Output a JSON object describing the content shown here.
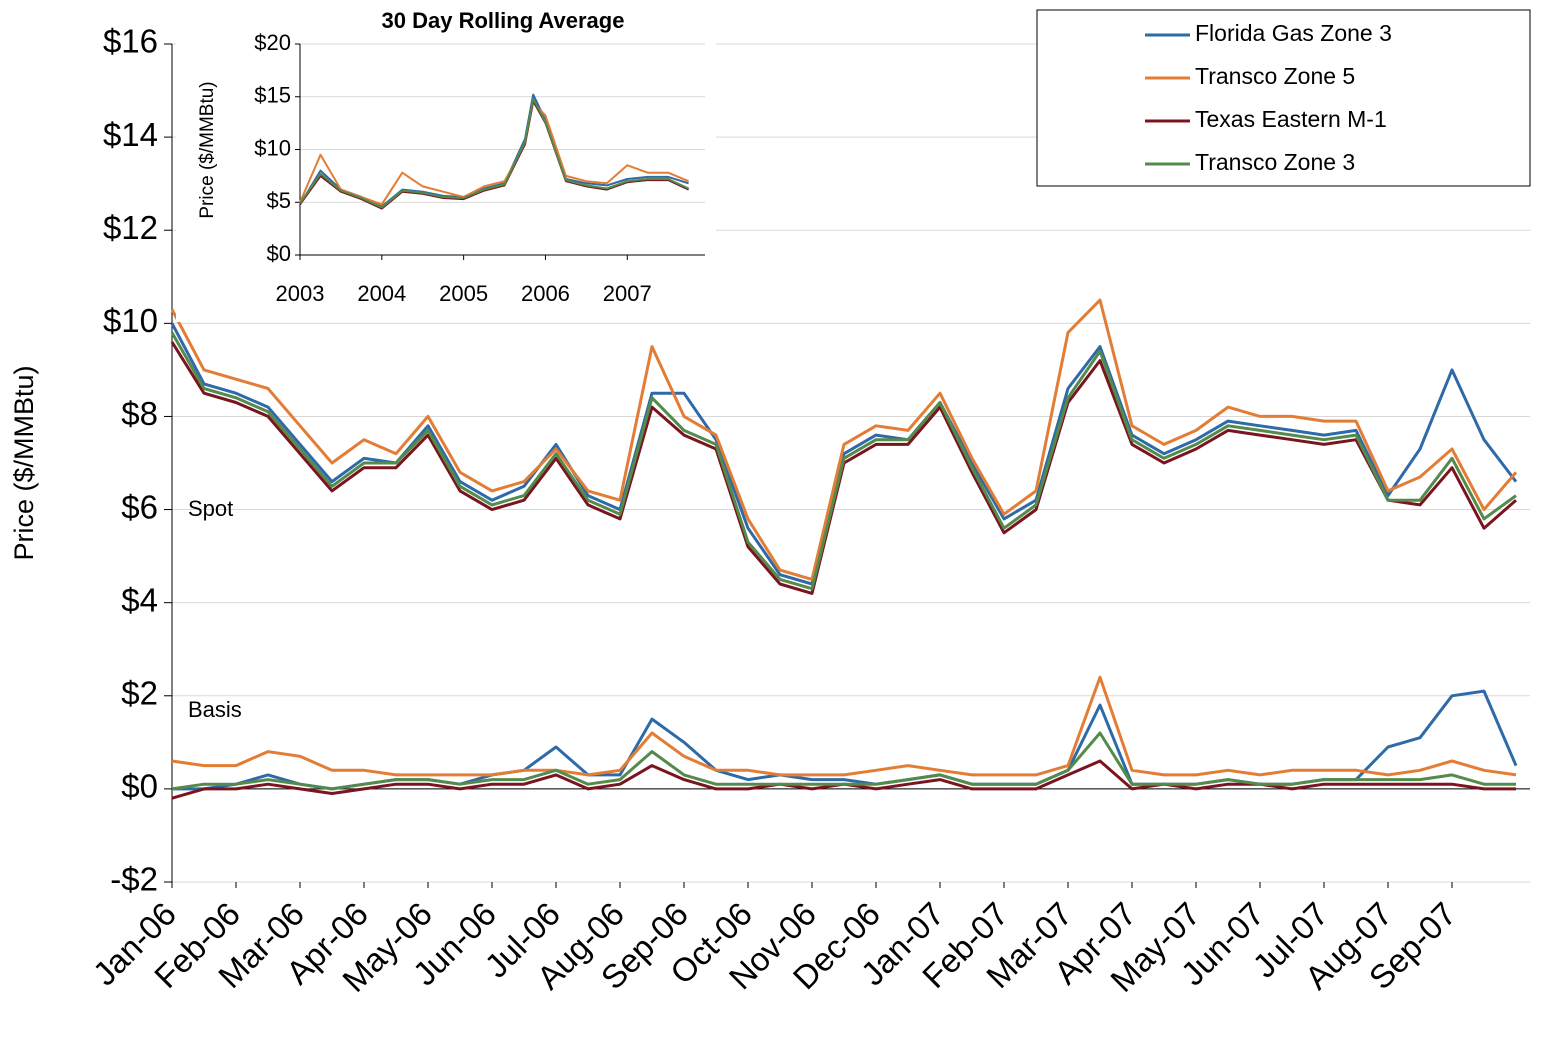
{
  "chart_data": [
    {
      "type": "line",
      "ylabel": "Price ($/MMBtu)",
      "annotations": [
        "Spot",
        "Basis"
      ],
      "legend": "upper right",
      "grid": true,
      "categories": [
        "Jan-06",
        null,
        "Feb-06",
        null,
        "Mar-06",
        null,
        "Apr-06",
        null,
        "May-06",
        null,
        "Jun-06",
        null,
        "Jul-06",
        null,
        "Aug-06",
        null,
        "Sep-06",
        null,
        "Oct-06",
        null,
        "Nov-06",
        null,
        "Dec-06",
        null,
        "Jan-07",
        null,
        "Feb-07",
        null,
        "Mar-07",
        null,
        "Apr-07",
        null,
        "May-07",
        null,
        "Jun-07",
        null,
        "Jul-07",
        null,
        "Aug-07",
        null,
        "Sep-07",
        null,
        null
      ],
      "ylim": [
        -2,
        16
      ],
      "yticks": [
        {
          "value": -2,
          "label": "-$2"
        },
        {
          "value": 0,
          "label": "$0"
        },
        {
          "value": 2,
          "label": "$2"
        },
        {
          "value": 4,
          "label": "$4"
        },
        {
          "value": 6,
          "label": "$6"
        },
        {
          "value": 8,
          "label": "$8"
        },
        {
          "value": 10,
          "label": "$10"
        },
        {
          "value": 12,
          "label": "$12"
        },
        {
          "value": 14,
          "label": "$14"
        },
        {
          "value": 16,
          "label": "$16"
        }
      ],
      "series": [
        {
          "name": "Florida Gas Zone 3",
          "color": "#2e6aa8",
          "values": [
            10.0,
            8.7,
            8.5,
            8.2,
            7.4,
            6.6,
            7.1,
            7.0,
            7.8,
            6.6,
            6.2,
            6.5,
            7.4,
            6.3,
            6.0,
            8.5,
            8.5,
            7.5,
            5.6,
            4.6,
            4.4,
            7.2,
            7.6,
            7.5,
            8.3,
            7.0,
            5.8,
            6.2,
            8.6,
            9.5,
            7.6,
            7.2,
            7.5,
            7.9,
            7.8,
            7.7,
            7.6,
            7.7,
            6.3,
            7.3,
            9.0,
            7.5,
            6.6
          ],
          "basis": [
            0.0,
            0.0,
            0.1,
            0.3,
            0.1,
            0.0,
            0.1,
            0.2,
            0.2,
            0.1,
            0.3,
            0.4,
            0.9,
            0.3,
            0.3,
            1.5,
            1.0,
            0.4,
            0.2,
            0.3,
            0.2,
            0.2,
            0.1,
            0.2,
            0.3,
            0.1,
            0.1,
            0.1,
            0.4,
            1.8,
            0.1,
            0.1,
            0.1,
            0.2,
            0.1,
            0.1,
            0.2,
            0.2,
            0.9,
            1.1,
            2.0,
            2.1,
            0.5
          ]
        },
        {
          "name": "Transco Zone 5",
          "color": "#e37d35",
          "values": [
            10.3,
            9.0,
            8.8,
            8.6,
            7.8,
            7.0,
            7.5,
            7.2,
            8.0,
            6.8,
            6.4,
            6.6,
            7.3,
            6.4,
            6.2,
            9.5,
            8.0,
            7.6,
            5.8,
            4.7,
            4.5,
            7.4,
            7.8,
            7.7,
            8.5,
            7.1,
            5.9,
            6.4,
            9.8,
            10.5,
            7.8,
            7.4,
            7.7,
            8.2,
            8.0,
            8.0,
            7.9,
            7.9,
            6.4,
            6.7,
            7.3,
            6.0,
            6.8
          ],
          "basis": [
            0.6,
            0.5,
            0.5,
            0.8,
            0.7,
            0.4,
            0.4,
            0.3,
            0.3,
            0.3,
            0.3,
            0.4,
            0.4,
            0.3,
            0.4,
            1.2,
            0.7,
            0.4,
            0.4,
            0.3,
            0.3,
            0.3,
            0.4,
            0.5,
            0.4,
            0.3,
            0.3,
            0.3,
            0.5,
            2.4,
            0.4,
            0.3,
            0.3,
            0.4,
            0.3,
            0.4,
            0.4,
            0.4,
            0.3,
            0.4,
            0.6,
            0.4,
            0.3
          ]
        },
        {
          "name": "Texas Eastern M-1",
          "color": "#7a1520",
          "values": [
            9.6,
            8.5,
            8.3,
            8.0,
            7.2,
            6.4,
            6.9,
            6.9,
            7.6,
            6.4,
            6.0,
            6.2,
            7.1,
            6.1,
            5.8,
            8.2,
            7.6,
            7.3,
            5.2,
            4.4,
            4.2,
            7.0,
            7.4,
            7.4,
            8.2,
            6.8,
            5.5,
            6.0,
            8.3,
            9.2,
            7.4,
            7.0,
            7.3,
            7.7,
            7.6,
            7.5,
            7.4,
            7.5,
            6.2,
            6.1,
            6.9,
            5.6,
            6.2
          ],
          "basis": [
            -0.2,
            0.0,
            0.0,
            0.1,
            0.0,
            -0.1,
            0.0,
            0.1,
            0.1,
            0.0,
            0.1,
            0.1,
            0.3,
            0.0,
            0.1,
            0.5,
            0.2,
            0.0,
            0.0,
            0.1,
            0.0,
            0.1,
            0.0,
            0.1,
            0.2,
            0.0,
            0.0,
            0.0,
            0.3,
            0.6,
            0.0,
            0.1,
            0.0,
            0.1,
            0.1,
            0.0,
            0.1,
            0.1,
            0.1,
            0.1,
            0.1,
            0.0,
            0.0
          ]
        },
        {
          "name": "Transco Zone 3",
          "color": "#548a4c",
          "values": [
            9.8,
            8.6,
            8.4,
            8.1,
            7.3,
            6.5,
            7.0,
            7.0,
            7.7,
            6.5,
            6.1,
            6.3,
            7.2,
            6.2,
            5.9,
            8.4,
            7.7,
            7.4,
            5.3,
            4.5,
            4.3,
            7.1,
            7.5,
            7.5,
            8.3,
            6.9,
            5.6,
            6.1,
            8.4,
            9.4,
            7.5,
            7.1,
            7.4,
            7.8,
            7.7,
            7.6,
            7.5,
            7.6,
            6.2,
            6.2,
            7.1,
            5.8,
            6.3
          ],
          "basis": [
            0.0,
            0.1,
            0.1,
            0.2,
            0.1,
            0.0,
            0.1,
            0.2,
            0.2,
            0.1,
            0.2,
            0.2,
            0.4,
            0.1,
            0.2,
            0.8,
            0.3,
            0.1,
            0.1,
            0.1,
            0.1,
            0.1,
            0.1,
            0.2,
            0.3,
            0.1,
            0.1,
            0.1,
            0.4,
            1.2,
            0.1,
            0.1,
            0.1,
            0.2,
            0.1,
            0.1,
            0.2,
            0.2,
            0.2,
            0.2,
            0.3,
            0.1,
            0.1
          ]
        }
      ]
    },
    {
      "type": "line",
      "title": "30 Day Rolling Average",
      "ylabel": "Price ($/MMBtu)",
      "grid": true,
      "x": [
        2003,
        2003.25,
        2003.5,
        2003.75,
        2004,
        2004.25,
        2004.5,
        2004.75,
        2005,
        2005.25,
        2005.5,
        2005.75,
        2005.85,
        2006,
        2006.25,
        2006.5,
        2006.75,
        2007,
        2007.25,
        2007.5,
        2007.75
      ],
      "xlim": [
        2003,
        2007.95
      ],
      "xticks": [
        2003,
        2004,
        2005,
        2006,
        2007
      ],
      "ylim": [
        0,
        20
      ],
      "yticks": [
        {
          "value": 0,
          "label": "$0"
        },
        {
          "value": 5,
          "label": "$5"
        },
        {
          "value": 10,
          "label": "$10"
        },
        {
          "value": 15,
          "label": "$15"
        },
        {
          "value": 20,
          "label": "$20"
        }
      ],
      "series": [
        {
          "color": "#2e6aa8",
          "values": [
            4.8,
            8.0,
            6.2,
            5.5,
            4.6,
            6.2,
            6.0,
            5.6,
            5.5,
            6.3,
            6.8,
            11.0,
            15.2,
            12.8,
            7.2,
            6.8,
            6.6,
            7.2,
            7.4,
            7.4,
            6.8
          ]
        },
        {
          "color": "#e37d35",
          "values": [
            5.0,
            9.5,
            6.2,
            5.5,
            4.8,
            7.8,
            6.5,
            6.0,
            5.5,
            6.5,
            7.0,
            10.5,
            14.5,
            13.2,
            7.5,
            7.0,
            6.8,
            8.5,
            7.8,
            7.8,
            7.0
          ]
        },
        {
          "color": "#7a1520",
          "values": [
            4.8,
            7.5,
            6.0,
            5.3,
            4.4,
            6.0,
            5.8,
            5.4,
            5.3,
            6.1,
            6.6,
            10.5,
            14.6,
            12.5,
            7.0,
            6.5,
            6.2,
            6.9,
            7.1,
            7.1,
            6.2
          ]
        },
        {
          "color": "#548a4c",
          "values": [
            4.9,
            7.7,
            6.1,
            5.4,
            4.5,
            6.1,
            5.9,
            5.5,
            5.4,
            6.2,
            6.7,
            10.7,
            14.8,
            12.6,
            7.1,
            6.6,
            6.3,
            7.0,
            7.2,
            7.2,
            6.3
          ]
        }
      ]
    }
  ]
}
